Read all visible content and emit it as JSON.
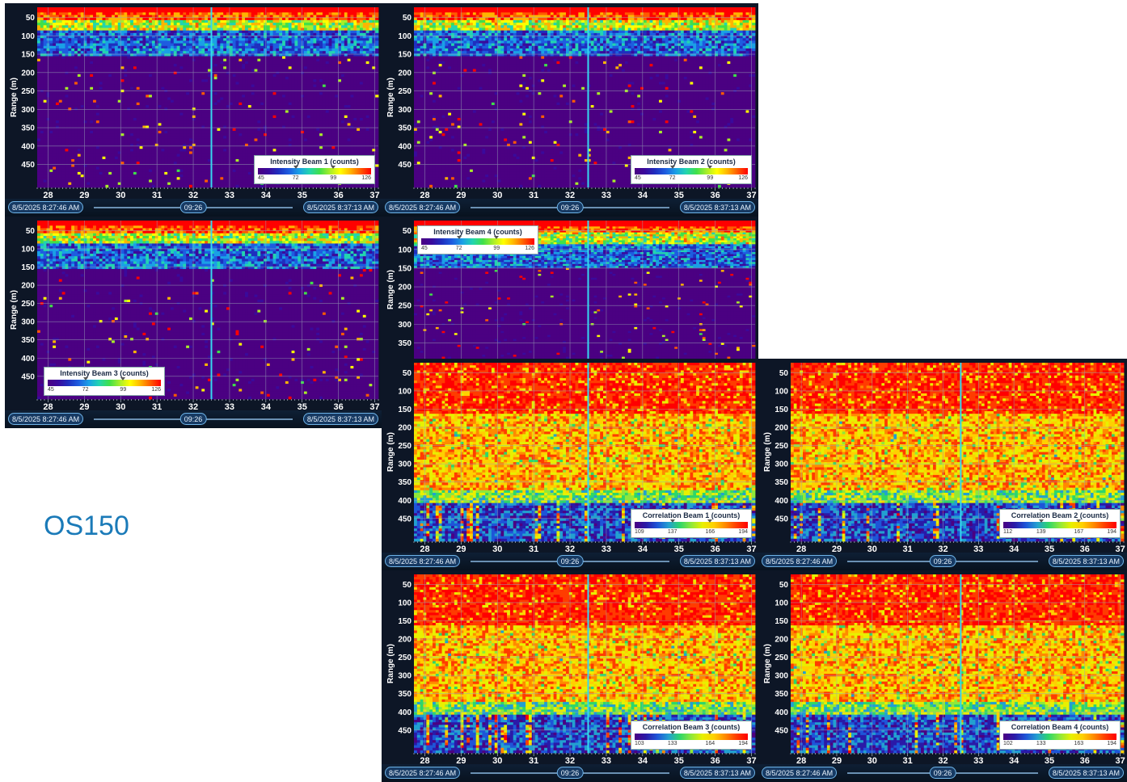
{
  "label": "OS150",
  "palettes": {
    "intensity": [
      "#4b0082",
      "#3a0a9c",
      "#1f2fbf",
      "#1e5de0",
      "#1aa0e6",
      "#22d4b0",
      "#3fe04a",
      "#a8ee2a",
      "#ffff00",
      "#ffb400",
      "#ff5a00",
      "#ff0000"
    ],
    "correlation": [
      "#4b0082",
      "#2a1aa8",
      "#1e55d8",
      "#22a0d0",
      "#2ed66a",
      "#8fe83a",
      "#e8f000",
      "#ffd000",
      "#ff8a00",
      "#ff3c00",
      "#ff0000"
    ]
  },
  "colors": {
    "grid": "#9aa8b8",
    "cursor": "#36d8f0",
    "axis_text": "#ffffff"
  },
  "charts": [
    {
      "id": "intensity-beam-1",
      "type": "heatmap",
      "kind": "intensity",
      "ylabel": "Range (m)",
      "y_ticks": [
        "50",
        "100",
        "150",
        "200",
        "250",
        "300",
        "350",
        "400",
        "450"
      ],
      "x_ticks": [
        "28",
        "29",
        "30",
        "31",
        "32",
        "33",
        "34",
        "35",
        "36",
        "37"
      ],
      "start_label": "8/5/2025 8:27:46 AM",
      "end_label": "8/5/2025 8:37:13 AM",
      "cursor_label": "09:26",
      "cursor_x": 32.5,
      "legend": {
        "title": "Intensity Beam 1 (counts)",
        "ticks": [
          "45",
          "72",
          "99",
          "126"
        ],
        "position": "bottom-right"
      },
      "seed": 11
    },
    {
      "id": "intensity-beam-2",
      "type": "heatmap",
      "kind": "intensity",
      "ylabel": "Range (m)",
      "y_ticks": [
        "50",
        "100",
        "150",
        "200",
        "250",
        "300",
        "350",
        "400",
        "450"
      ],
      "x_ticks": [
        "28",
        "29",
        "30",
        "31",
        "32",
        "33",
        "34",
        "35",
        "36",
        "37"
      ],
      "start_label": "8/5/2025 8:27:46 AM",
      "end_label": "8/5/2025 8:37:13 AM",
      "cursor_label": "09:26",
      "cursor_x": 32.5,
      "legend": {
        "title": "Intensity Beam 2 (counts)",
        "ticks": [
          "45",
          "72",
          "99",
          "126"
        ],
        "position": "bottom-right"
      },
      "seed": 23
    },
    {
      "id": "intensity-beam-3",
      "type": "heatmap",
      "kind": "intensity",
      "ylabel": "Range (m)",
      "y_ticks": [
        "50",
        "100",
        "150",
        "200",
        "250",
        "300",
        "350",
        "400",
        "450"
      ],
      "x_ticks": [
        "28",
        "29",
        "30",
        "31",
        "32",
        "33",
        "34",
        "35",
        "36",
        "37"
      ],
      "start_label": "8/5/2025 8:27:46 AM",
      "end_label": "8/5/2025 8:37:13 AM",
      "cursor_label": "09:26",
      "cursor_x": 32.5,
      "legend": {
        "title": "Intensity Beam 3 (counts)",
        "ticks": [
          "45",
          "72",
          "99",
          "126"
        ],
        "position": "bottom-left"
      },
      "seed": 37
    },
    {
      "id": "intensity-beam-4",
      "type": "heatmap",
      "kind": "intensity",
      "ylabel": "Range (m)",
      "y_ticks": [
        "50",
        "100",
        "150",
        "200",
        "250",
        "300",
        "350"
      ],
      "x_ticks": [],
      "start_label": "",
      "end_label": "",
      "cursor_label": "",
      "cursor_x": 32.5,
      "legend": {
        "title": "Intensity Beam 4 (counts)",
        "ticks": [
          "45",
          "72",
          "99",
          "126"
        ],
        "position": "top-left"
      },
      "seed": 41
    },
    {
      "id": "correlation-beam-1",
      "type": "heatmap",
      "kind": "correlation",
      "ylabel": "Range (m)",
      "y_ticks": [
        "50",
        "100",
        "150",
        "200",
        "250",
        "300",
        "350",
        "400",
        "450"
      ],
      "x_ticks": [
        "28",
        "29",
        "30",
        "31",
        "32",
        "33",
        "34",
        "35",
        "36",
        "37"
      ],
      "start_label": "8/5/2025 8:27:46 AM",
      "end_label": "8/5/2025 8:37:13 AM",
      "cursor_label": "09:26",
      "cursor_x": 32.5,
      "legend": {
        "title": "Correlation Beam 1 (counts)",
        "ticks": [
          "109",
          "137",
          "166",
          "194"
        ],
        "position": "bottom-right"
      },
      "seed": 53
    },
    {
      "id": "correlation-beam-2",
      "type": "heatmap",
      "kind": "correlation",
      "ylabel": "Range (m)",
      "y_ticks": [
        "50",
        "100",
        "150",
        "200",
        "250",
        "300",
        "350",
        "400",
        "450"
      ],
      "x_ticks": [
        "28",
        "29",
        "30",
        "31",
        "32",
        "33",
        "34",
        "35",
        "36",
        "37"
      ],
      "start_label": "8/5/2025 8:27:46 AM",
      "end_label": "8/5/2025 8:37:13 AM",
      "cursor_label": "09:26",
      "cursor_x": 32.5,
      "legend": {
        "title": "Correlation Beam 2 (counts)",
        "ticks": [
          "112",
          "139",
          "167",
          "194"
        ],
        "position": "bottom-right"
      },
      "seed": 67
    },
    {
      "id": "correlation-beam-3",
      "type": "heatmap",
      "kind": "correlation",
      "ylabel": "Range (m)",
      "y_ticks": [
        "50",
        "100",
        "150",
        "200",
        "250",
        "300",
        "350",
        "400",
        "450"
      ],
      "x_ticks": [
        "28",
        "29",
        "30",
        "31",
        "32",
        "33",
        "34",
        "35",
        "36",
        "37"
      ],
      "start_label": "8/5/2025 8:27:46 AM",
      "end_label": "8/5/2025 8:37:13 AM",
      "cursor_label": "09:26",
      "cursor_x": 32.5,
      "legend": {
        "title": "Correlation Beam 3 (counts)",
        "ticks": [
          "103",
          "133",
          "164",
          "194"
        ],
        "position": "bottom-right"
      },
      "seed": 79
    },
    {
      "id": "correlation-beam-4",
      "type": "heatmap",
      "kind": "correlation",
      "ylabel": "Range (m)",
      "y_ticks": [
        "50",
        "100",
        "150",
        "200",
        "250",
        "300",
        "350",
        "400",
        "450"
      ],
      "x_ticks": [
        "28",
        "29",
        "30",
        "31",
        "32",
        "33",
        "34",
        "35",
        "36",
        "37"
      ],
      "start_label": "8/5/2025 8:27:46 AM",
      "end_label": "8/5/2025 8:37:13 AM",
      "cursor_label": "09:26",
      "cursor_x": 32.5,
      "legend": {
        "title": "Correlation Beam 4 (counts)",
        "ticks": [
          "102",
          "133",
          "163",
          "194"
        ],
        "position": "bottom-right"
      },
      "seed": 97
    }
  ]
}
